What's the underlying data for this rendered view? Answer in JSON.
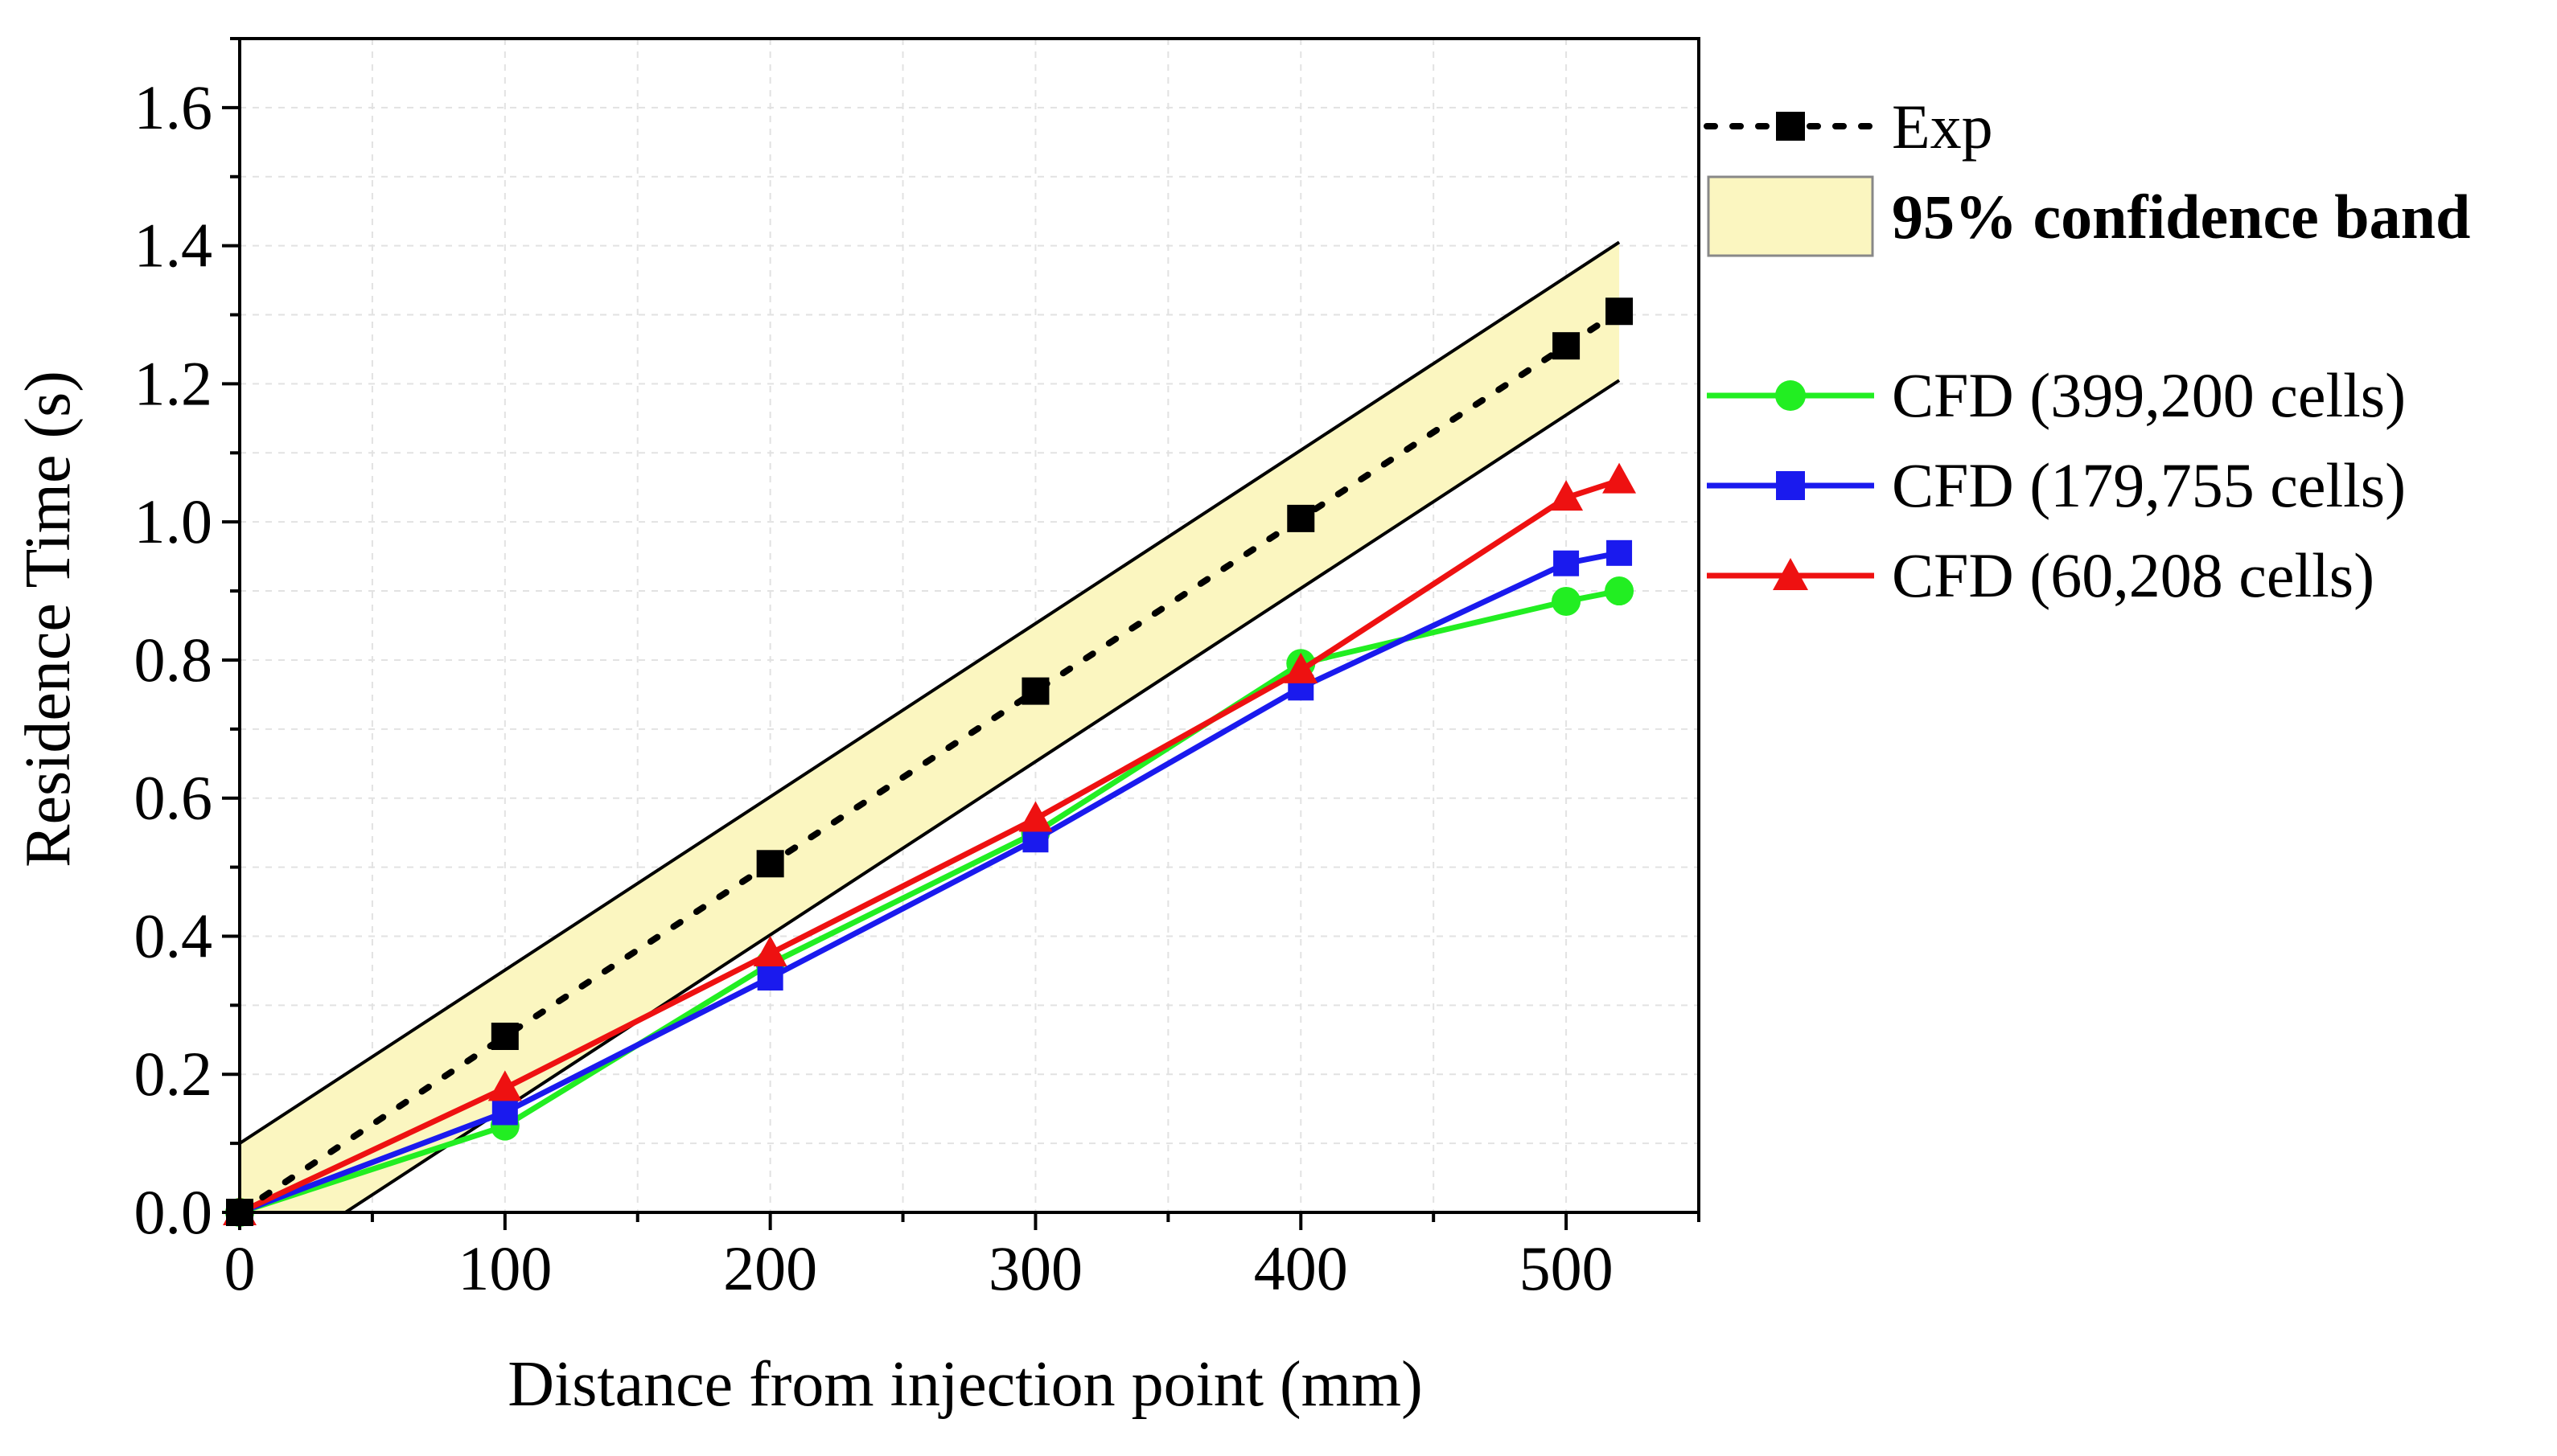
{
  "chart_data": {
    "type": "line",
    "xlabel": "Distance from injection point (mm)",
    "ylabel": "Residence Time (s)",
    "xlim": [
      0,
      550
    ],
    "ylim": [
      0,
      1.7
    ],
    "xticks": [
      0,
      100,
      200,
      300,
      400,
      500
    ],
    "xtick_labels": [
      "0",
      "100",
      "200",
      "300",
      "400",
      "500"
    ],
    "yticks": [
      0,
      0.2,
      0.4,
      0.6,
      0.8,
      1.0,
      1.2,
      1.4,
      1.6
    ],
    "ytick_labels": [
      "0.0",
      "0.2",
      "0.4",
      "0.6",
      "0.8",
      "1.0",
      "1.2",
      "1.4",
      "1.6"
    ],
    "grid": true,
    "legend_position": "right",
    "confidence_band": {
      "name": "95% confidence band",
      "fill": "#fbf6c0",
      "upper": [
        [
          0,
          0.1
        ],
        [
          520,
          1.405
        ]
      ],
      "lower": [
        [
          0,
          -0.1
        ],
        [
          520,
          1.205
        ]
      ]
    },
    "series": [
      {
        "name": "Exp",
        "color": "#000000",
        "line_style": "dotted",
        "marker": "square",
        "points": [
          [
            0,
            0.0
          ],
          [
            100,
            0.255
          ],
          [
            200,
            0.505
          ],
          [
            300,
            0.755
          ],
          [
            400,
            1.005
          ],
          [
            500,
            1.255
          ],
          [
            520,
            1.305
          ]
        ]
      },
      {
        "name": "CFD (399,200 cells)",
        "color": "#22ee22",
        "line_style": "solid",
        "marker": "circle",
        "points": [
          [
            0,
            0.0
          ],
          [
            100,
            0.125
          ],
          [
            200,
            0.36
          ],
          [
            300,
            0.55
          ],
          [
            400,
            0.795
          ],
          [
            500,
            0.885
          ],
          [
            520,
            0.9
          ]
        ]
      },
      {
        "name": "CFD (179,755 cells)",
        "color": "#1a1aee",
        "line_style": "solid",
        "marker": "square",
        "points": [
          [
            0,
            0.0
          ],
          [
            100,
            0.145
          ],
          [
            200,
            0.34
          ],
          [
            300,
            0.54
          ],
          [
            400,
            0.76
          ],
          [
            500,
            0.94
          ],
          [
            520,
            0.955
          ]
        ]
      },
      {
        "name": "CFD (60,208 cells)",
        "color": "#ee1111",
        "line_style": "solid",
        "marker": "triangle",
        "points": [
          [
            0,
            0.0
          ],
          [
            100,
            0.18
          ],
          [
            200,
            0.375
          ],
          [
            300,
            0.57
          ],
          [
            400,
            0.785
          ],
          [
            500,
            1.035
          ],
          [
            520,
            1.06
          ]
        ]
      }
    ]
  }
}
